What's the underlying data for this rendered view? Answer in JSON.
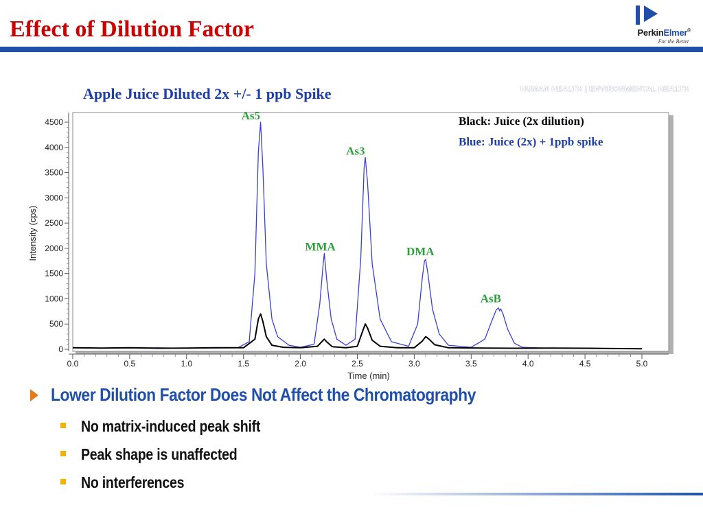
{
  "slide": {
    "title": "Effect of Dilution Factor",
    "tagline": "HUMAN HEALTH | ENVIRONMENTAL HEALTH"
  },
  "logo": {
    "name_part1": "Perkin",
    "name_part2": "Elmer",
    "trademark": "®",
    "tagline": "For the Better"
  },
  "colors": {
    "title_red": "#cc0000",
    "brand_blue": "#1f4fa8",
    "peak_label_green": "#2e9e3a",
    "spike_blue": "#3a3fd4",
    "juice_black": "#000000",
    "bullet_orange": "#e07b1a",
    "sub_bullet_yellow": "#f0b400"
  },
  "chart_data": {
    "type": "line",
    "title": "Apple Juice Diluted 2x +/- 1 ppb Spike",
    "xlabel": "Time (min)",
    "ylabel": "Intensity (cps)",
    "xlim": [
      0.0,
      5.0
    ],
    "ylim": [
      0,
      4500
    ],
    "x_ticks": [
      "0.0",
      "0.5",
      "1.0",
      "1.5",
      "2.0",
      "2.5",
      "3.0",
      "3.5",
      "4.0",
      "4.5",
      "5.0"
    ],
    "y_ticks": [
      "0",
      "500",
      "1000",
      "1500",
      "2000",
      "2500",
      "3000",
      "3500",
      "4000",
      "4500"
    ],
    "grid": false,
    "legend": [
      {
        "text": "Black:  Juice (2x dilution)",
        "color": "#000000"
      },
      {
        "text": "Blue:  Juice (2x) + 1ppb spike",
        "color": "#1f3fa8"
      }
    ],
    "legend_position": "top-right",
    "peak_labels": [
      {
        "text": "As5",
        "x": 1.65
      },
      {
        "text": "MMA",
        "x": 2.21
      },
      {
        "text": "As3",
        "x": 2.57
      },
      {
        "text": "DMA",
        "x": 3.1
      },
      {
        "text": "AsB",
        "x": 3.75
      }
    ],
    "series": [
      {
        "name": "Juice (2x) + 1ppb spike",
        "color": "#3a3fd4",
        "x": [
          0.0,
          0.25,
          0.5,
          0.75,
          1.0,
          1.25,
          1.45,
          1.55,
          1.6,
          1.63,
          1.65,
          1.67,
          1.7,
          1.75,
          1.8,
          1.9,
          2.0,
          2.12,
          2.17,
          2.2,
          2.21,
          2.23,
          2.27,
          2.32,
          2.4,
          2.48,
          2.53,
          2.56,
          2.57,
          2.59,
          2.63,
          2.7,
          2.8,
          2.95,
          3.03,
          3.07,
          3.09,
          3.1,
          3.12,
          3.16,
          3.22,
          3.3,
          3.5,
          3.62,
          3.68,
          3.72,
          3.74,
          3.75,
          3.76,
          3.78,
          3.82,
          3.88,
          3.95,
          4.2,
          4.5,
          4.75,
          5.0
        ],
        "y": [
          30,
          20,
          25,
          30,
          20,
          25,
          30,
          150,
          1500,
          3900,
          4500,
          3600,
          1700,
          600,
          250,
          80,
          40,
          100,
          900,
          1700,
          1900,
          1400,
          600,
          200,
          80,
          200,
          1800,
          3600,
          3800,
          3300,
          1700,
          600,
          150,
          60,
          500,
          1400,
          1750,
          1780,
          1500,
          800,
          300,
          80,
          40,
          200,
          550,
          780,
          820,
          760,
          800,
          700,
          400,
          120,
          40,
          20,
          25,
          15,
          10
        ]
      },
      {
        "name": "Juice (2x dilution)",
        "color": "#000000",
        "x": [
          0.0,
          0.25,
          0.5,
          0.75,
          1.0,
          1.25,
          1.5,
          1.6,
          1.63,
          1.65,
          1.67,
          1.7,
          1.75,
          1.85,
          2.0,
          2.15,
          2.2,
          2.21,
          2.23,
          2.28,
          2.4,
          2.5,
          2.55,
          2.57,
          2.59,
          2.63,
          2.7,
          2.85,
          3.0,
          3.07,
          3.1,
          3.13,
          3.18,
          3.3,
          3.6,
          3.9,
          4.2,
          4.5,
          4.75,
          5.0
        ],
        "y": [
          30,
          25,
          30,
          20,
          25,
          30,
          30,
          200,
          600,
          700,
          550,
          250,
          80,
          40,
          30,
          60,
          180,
          200,
          150,
          50,
          30,
          60,
          380,
          500,
          420,
          180,
          60,
          30,
          30,
          160,
          250,
          200,
          90,
          30,
          25,
          20,
          25,
          20,
          15,
          10
        ]
      }
    ]
  },
  "bullets": {
    "main": "Lower Dilution Factor Does Not Affect the Chromatography",
    "sub": [
      "No matrix-induced peak shift",
      "Peak shape is unaffected",
      "No interferences"
    ]
  }
}
